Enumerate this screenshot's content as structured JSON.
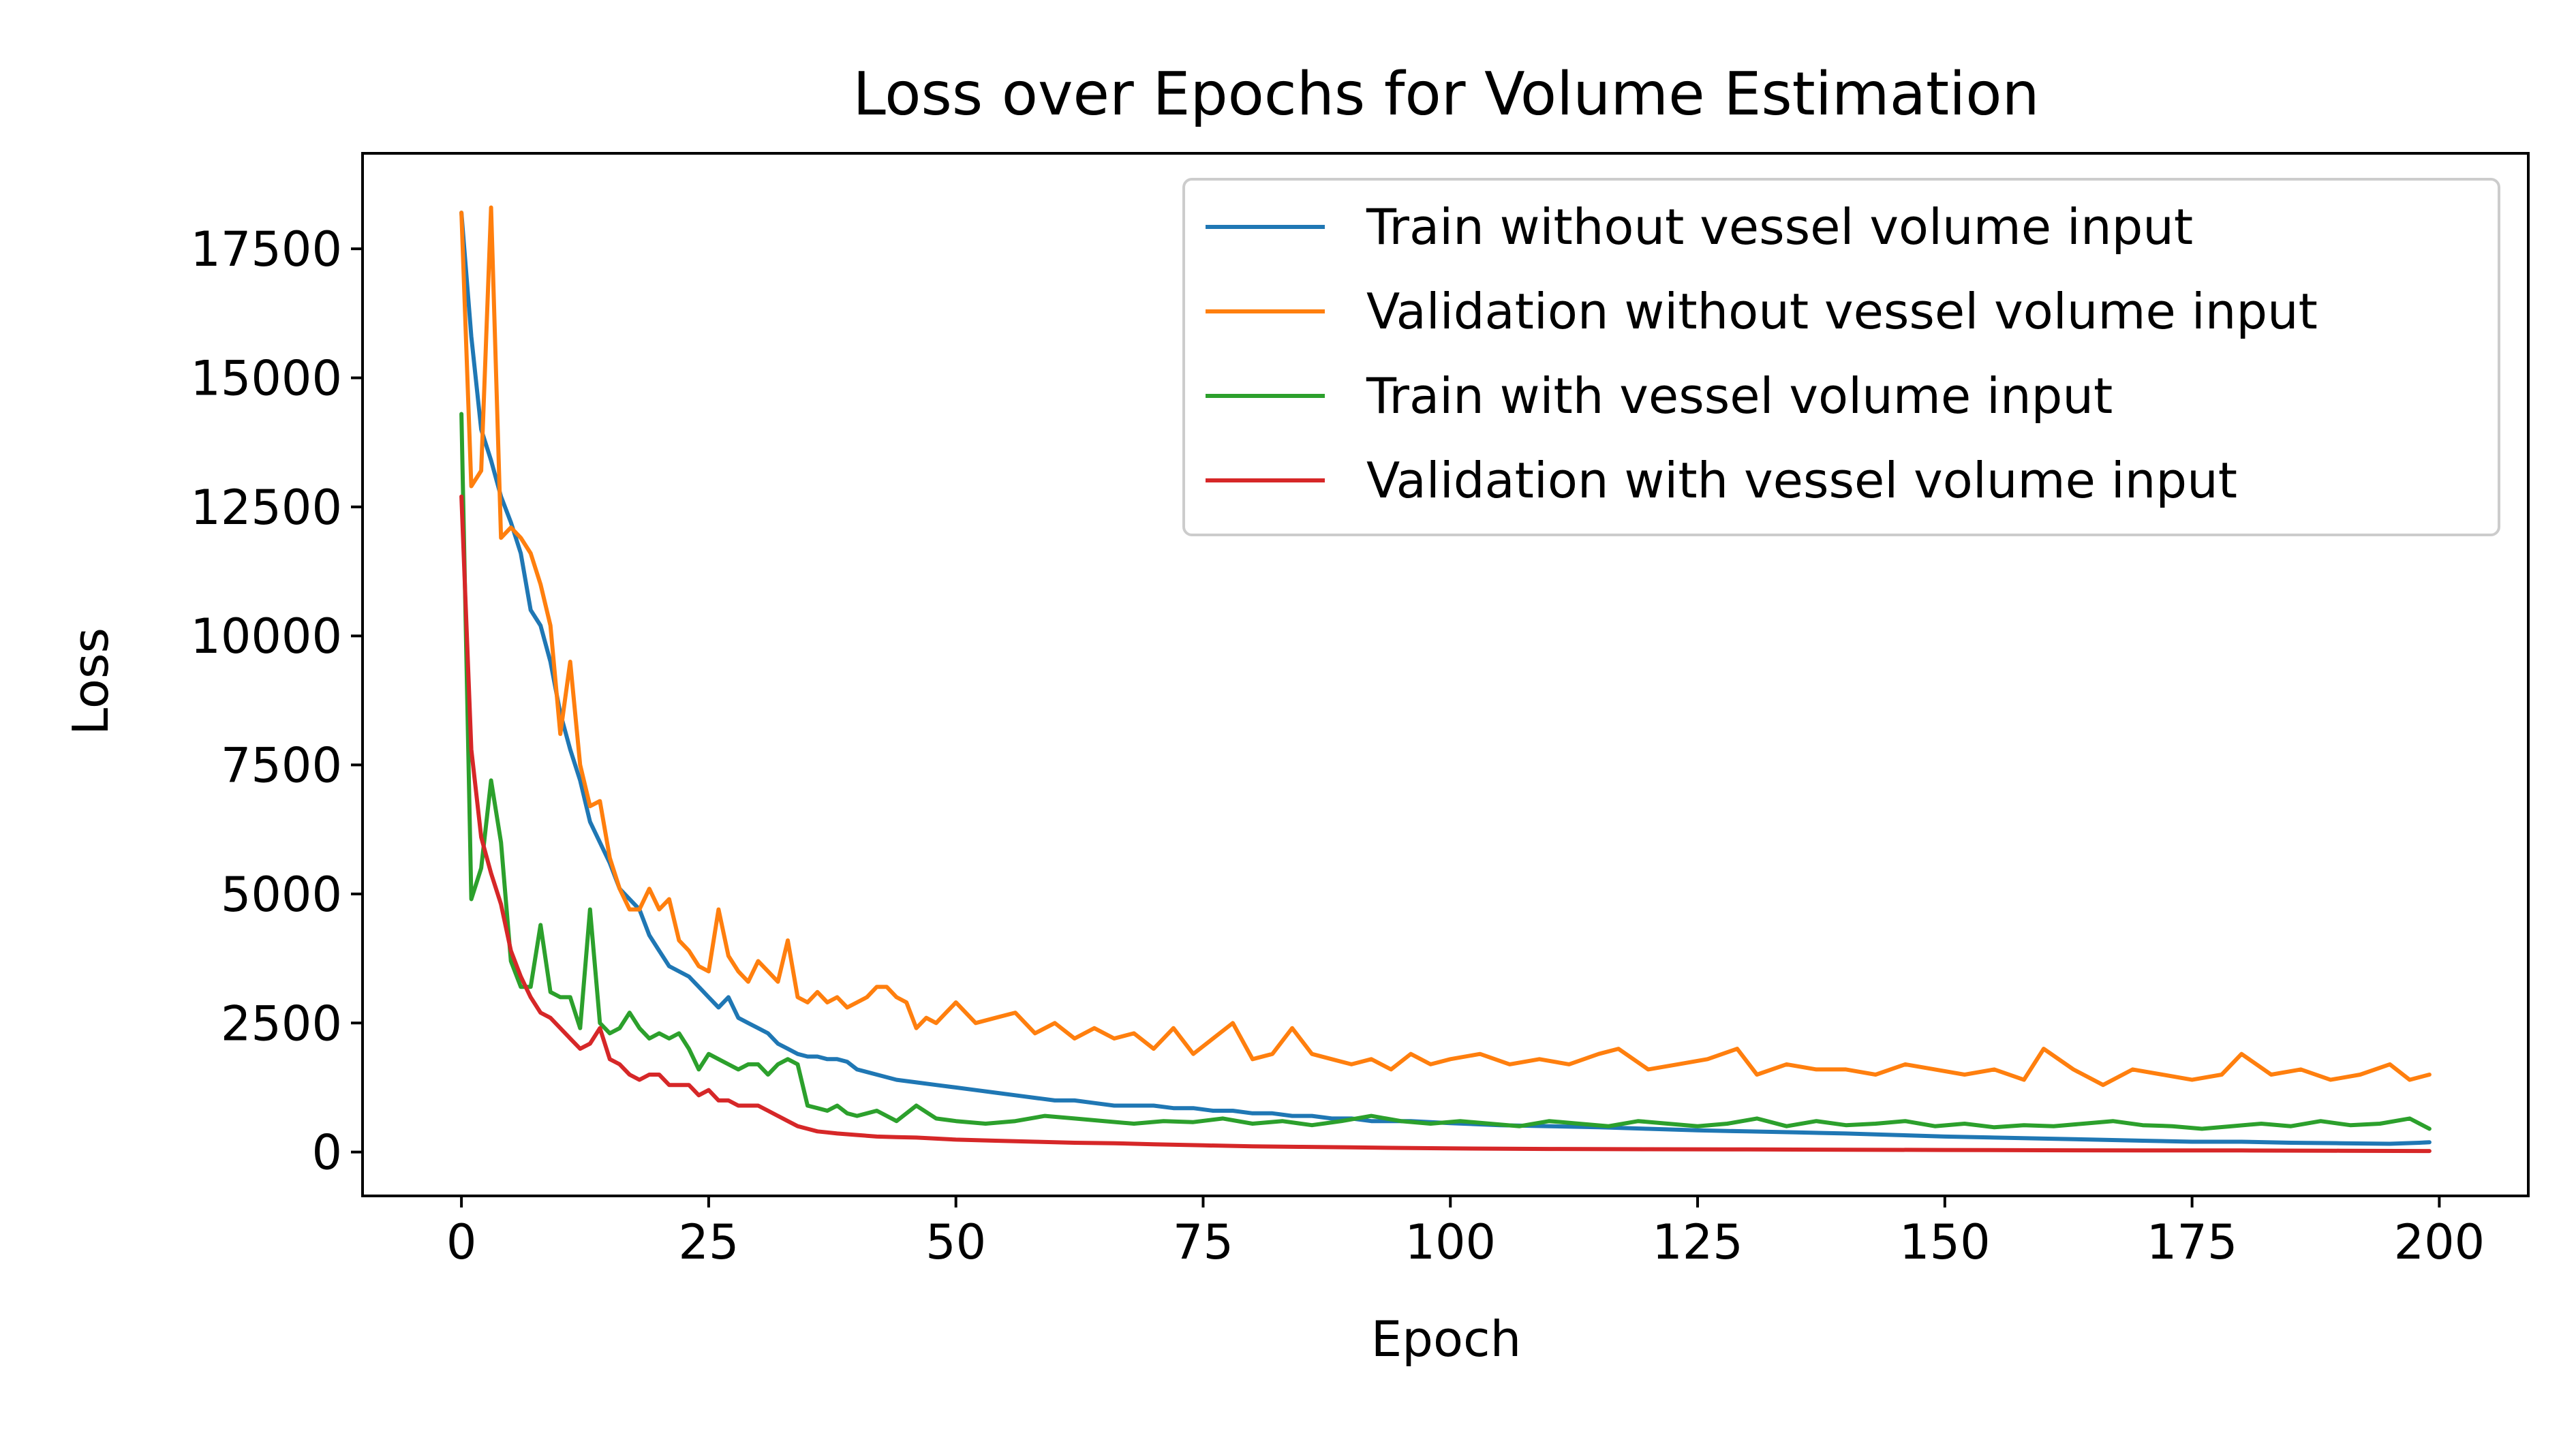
{
  "chart_data": {
    "type": "line",
    "title": "Loss over Epochs for Volume Estimation",
    "xlabel": "Epoch",
    "ylabel": "Loss",
    "xlim": [
      -10,
      209
    ],
    "ylim": [
      -850,
      19350
    ],
    "xticks": [
      0,
      25,
      50,
      75,
      100,
      125,
      150,
      175,
      200
    ],
    "yticks": [
      0,
      2500,
      5000,
      7500,
      10000,
      12500,
      15000,
      17500
    ],
    "grid": false,
    "legend_position": "top-right",
    "series": [
      {
        "name": "Train without vessel volume input",
        "color": "#1f77b4",
        "x": [
          0,
          1,
          2,
          3,
          4,
          5,
          6,
          7,
          8,
          9,
          10,
          11,
          12,
          13,
          14,
          15,
          16,
          17,
          18,
          19,
          20,
          21,
          22,
          23,
          24,
          25,
          26,
          27,
          28,
          29,
          30,
          31,
          32,
          33,
          34,
          35,
          36,
          37,
          38,
          39,
          40,
          42,
          44,
          46,
          48,
          50,
          52,
          54,
          56,
          58,
          60,
          62,
          64,
          66,
          68,
          70,
          72,
          74,
          76,
          78,
          80,
          82,
          84,
          86,
          88,
          90,
          92,
          94,
          96,
          98,
          100,
          105,
          110,
          115,
          120,
          125,
          130,
          135,
          140,
          145,
          150,
          155,
          160,
          165,
          170,
          175,
          180,
          185,
          190,
          195,
          198,
          199
        ],
        "y": [
          18200,
          15800,
          14000,
          13400,
          12700,
          12200,
          11600,
          10500,
          10200,
          9500,
          8500,
          7800,
          7200,
          6400,
          6000,
          5600,
          5100,
          4900,
          4700,
          4200,
          3900,
          3600,
          3500,
          3400,
          3200,
          3000,
          2800,
          3000,
          2600,
          2500,
          2400,
          2300,
          2100,
          2000,
          1900,
          1850,
          1850,
          1800,
          1800,
          1750,
          1600,
          1500,
          1400,
          1350,
          1300,
          1250,
          1200,
          1150,
          1100,
          1050,
          1000,
          1000,
          950,
          900,
          900,
          900,
          850,
          850,
          800,
          800,
          750,
          750,
          700,
          700,
          650,
          650,
          600,
          600,
          600,
          580,
          560,
          520,
          500,
          480,
          450,
          420,
          400,
          380,
          360,
          330,
          300,
          280,
          260,
          240,
          220,
          200,
          200,
          180,
          170,
          160,
          180,
          190
        ]
      },
      {
        "name": "Validation without vessel volume input",
        "color": "#ff7f0e",
        "x": [
          0,
          1,
          2,
          3,
          4,
          5,
          6,
          7,
          8,
          9,
          10,
          11,
          12,
          13,
          14,
          15,
          16,
          17,
          18,
          19,
          20,
          21,
          22,
          23,
          24,
          25,
          26,
          27,
          28,
          29,
          30,
          31,
          32,
          33,
          34,
          35,
          36,
          37,
          38,
          39,
          40,
          41,
          42,
          43,
          44,
          45,
          46,
          47,
          48,
          49,
          50,
          52,
          54,
          56,
          58,
          60,
          62,
          64,
          66,
          68,
          70,
          72,
          74,
          76,
          78,
          80,
          82,
          84,
          86,
          88,
          90,
          92,
          94,
          96,
          98,
          100,
          103,
          106,
          109,
          112,
          115,
          117,
          120,
          123,
          126,
          129,
          131,
          134,
          137,
          140,
          143,
          146,
          149,
          152,
          155,
          158,
          160,
          163,
          166,
          169,
          172,
          175,
          178,
          180,
          183,
          186,
          189,
          192,
          195,
          197,
          199
        ],
        "y": [
          18200,
          12900,
          13200,
          18300,
          11900,
          12100,
          11900,
          11600,
          11000,
          10200,
          8100,
          9500,
          7500,
          6700,
          6800,
          5700,
          5100,
          4700,
          4700,
          5100,
          4700,
          4900,
          4100,
          3900,
          3600,
          3500,
          4700,
          3800,
          3500,
          3300,
          3700,
          3500,
          3300,
          4100,
          3000,
          2900,
          3100,
          2900,
          3000,
          2800,
          2900,
          3000,
          3200,
          3200,
          3000,
          2900,
          2400,
          2600,
          2500,
          2700,
          2900,
          2500,
          2600,
          2700,
          2300,
          2500,
          2200,
          2400,
          2200,
          2300,
          2000,
          2400,
          1900,
          2200,
          2500,
          1800,
          1900,
          2400,
          1900,
          1800,
          1700,
          1800,
          1600,
          1900,
          1700,
          1800,
          1900,
          1700,
          1800,
          1700,
          1900,
          2000,
          1600,
          1700,
          1800,
          2000,
          1500,
          1700,
          1600,
          1600,
          1500,
          1700,
          1600,
          1500,
          1600,
          1400,
          2000,
          1600,
          1300,
          1600,
          1500,
          1400,
          1500,
          1900,
          1500,
          1600,
          1400,
          1500,
          1700,
          1400,
          1500
        ]
      },
      {
        "name": "Train with vessel volume input",
        "color": "#2ca02c",
        "x": [
          0,
          1,
          2,
          3,
          4,
          5,
          6,
          7,
          8,
          9,
          10,
          11,
          12,
          13,
          14,
          15,
          16,
          17,
          18,
          19,
          20,
          21,
          22,
          23,
          24,
          25,
          26,
          27,
          28,
          29,
          30,
          31,
          32,
          33,
          34,
          35,
          36,
          37,
          38,
          39,
          40,
          42,
          44,
          46,
          48,
          50,
          53,
          56,
          59,
          62,
          65,
          68,
          71,
          74,
          77,
          80,
          83,
          86,
          89,
          92,
          95,
          98,
          101,
          104,
          107,
          110,
          113,
          116,
          119,
          122,
          125,
          128,
          131,
          134,
          137,
          140,
          143,
          146,
          149,
          152,
          155,
          158,
          161,
          164,
          167,
          170,
          173,
          176,
          179,
          182,
          185,
          188,
          191,
          194,
          197,
          199
        ],
        "y": [
          14300,
          4900,
          5500,
          7200,
          6000,
          3700,
          3200,
          3200,
          4400,
          3100,
          3000,
          3000,
          2400,
          4700,
          2500,
          2300,
          2400,
          2700,
          2400,
          2200,
          2300,
          2200,
          2300,
          2000,
          1600,
          1900,
          1800,
          1700,
          1600,
          1700,
          1700,
          1500,
          1700,
          1800,
          1700,
          900,
          850,
          800,
          900,
          750,
          700,
          800,
          600,
          900,
          650,
          600,
          550,
          600,
          700,
          650,
          600,
          550,
          600,
          580,
          650,
          550,
          600,
          520,
          600,
          700,
          600,
          550,
          600,
          550,
          500,
          600,
          550,
          500,
          600,
          550,
          500,
          550,
          650,
          500,
          600,
          520,
          550,
          600,
          500,
          550,
          480,
          520,
          500,
          550,
          600,
          520,
          500,
          450,
          500,
          550,
          500,
          600,
          520,
          550,
          650,
          450
        ]
      },
      {
        "name": "Validation with vessel volume input",
        "color": "#d62728",
        "x": [
          0,
          1,
          2,
          3,
          4,
          5,
          6,
          7,
          8,
          9,
          10,
          11,
          12,
          13,
          14,
          15,
          16,
          17,
          18,
          19,
          20,
          21,
          22,
          23,
          24,
          25,
          26,
          27,
          28,
          29,
          30,
          31,
          32,
          33,
          34,
          35,
          36,
          37,
          38,
          40,
          42,
          44,
          46,
          48,
          50,
          54,
          58,
          62,
          66,
          70,
          75,
          80,
          85,
          90,
          95,
          100,
          110,
          120,
          130,
          140,
          150,
          160,
          170,
          180,
          190,
          199
        ],
        "y": [
          12700,
          7800,
          6100,
          5400,
          4800,
          3900,
          3400,
          3000,
          2700,
          2600,
          2400,
          2200,
          2000,
          2100,
          2400,
          1800,
          1700,
          1500,
          1400,
          1500,
          1500,
          1300,
          1300,
          1300,
          1100,
          1200,
          1000,
          1000,
          900,
          900,
          900,
          800,
          700,
          600,
          500,
          450,
          400,
          380,
          360,
          330,
          300,
          290,
          280,
          260,
          240,
          220,
          200,
          180,
          170,
          150,
          130,
          110,
          100,
          90,
          80,
          70,
          60,
          55,
          50,
          45,
          40,
          35,
          30,
          30,
          25,
          20
        ]
      }
    ]
  }
}
